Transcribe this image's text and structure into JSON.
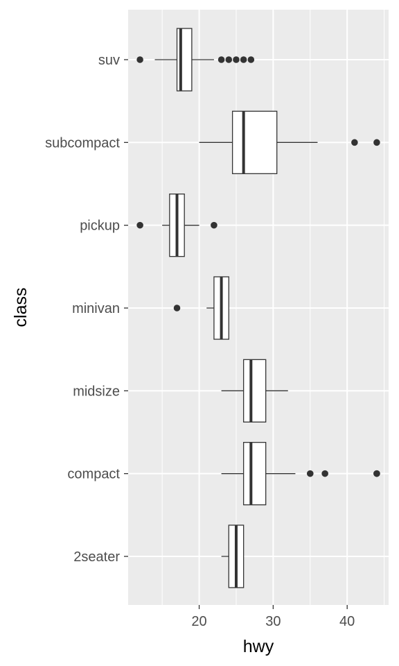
{
  "chart_data": {
    "type": "boxplot",
    "orientation": "horizontal",
    "title": "",
    "xlabel": "hwy",
    "ylabel": "class",
    "xlim": [
      10.4,
      45.6
    ],
    "x_ticks": [
      20,
      30,
      40
    ],
    "x_minor_ticks": [
      15,
      25,
      35,
      45
    ],
    "grid": true,
    "legend": "none",
    "categories": [
      "2seater",
      "compact",
      "midsize",
      "minivan",
      "pickup",
      "subcompact",
      "suv"
    ],
    "series": [
      {
        "category": "2seater",
        "whisker_low": 23,
        "q1": 24,
        "median": 25,
        "q3": 26,
        "whisker_high": 26,
        "outliers": []
      },
      {
        "category": "compact",
        "whisker_low": 23,
        "q1": 26,
        "median": 27,
        "q3": 29,
        "whisker_high": 33,
        "outliers": [
          35,
          37,
          44,
          44
        ]
      },
      {
        "category": "midsize",
        "whisker_low": 23,
        "q1": 26,
        "median": 27,
        "q3": 29,
        "whisker_high": 32,
        "outliers": []
      },
      {
        "category": "minivan",
        "whisker_low": 21,
        "q1": 22,
        "median": 23,
        "q3": 24,
        "whisker_high": 24,
        "outliers": [
          17
        ]
      },
      {
        "category": "pickup",
        "whisker_low": 15,
        "q1": 16,
        "median": 17,
        "q3": 18,
        "whisker_high": 20,
        "outliers": [
          12,
          22
        ]
      },
      {
        "category": "subcompact",
        "whisker_low": 20,
        "q1": 24.5,
        "median": 26,
        "q3": 30.5,
        "whisker_high": 36,
        "outliers": [
          41,
          44
        ]
      },
      {
        "category": "suv",
        "whisker_low": 14,
        "q1": 17,
        "median": 17.5,
        "q3": 19,
        "whisker_high": 22,
        "outliers": [
          12,
          23,
          24,
          25,
          26,
          27
        ]
      }
    ],
    "colors": {
      "panel": "#ebebeb",
      "grid_major": "#ffffff",
      "box_fill": "#ffffff",
      "box_line": "#333333",
      "outlier": "#333333",
      "tick": "#333333"
    }
  }
}
